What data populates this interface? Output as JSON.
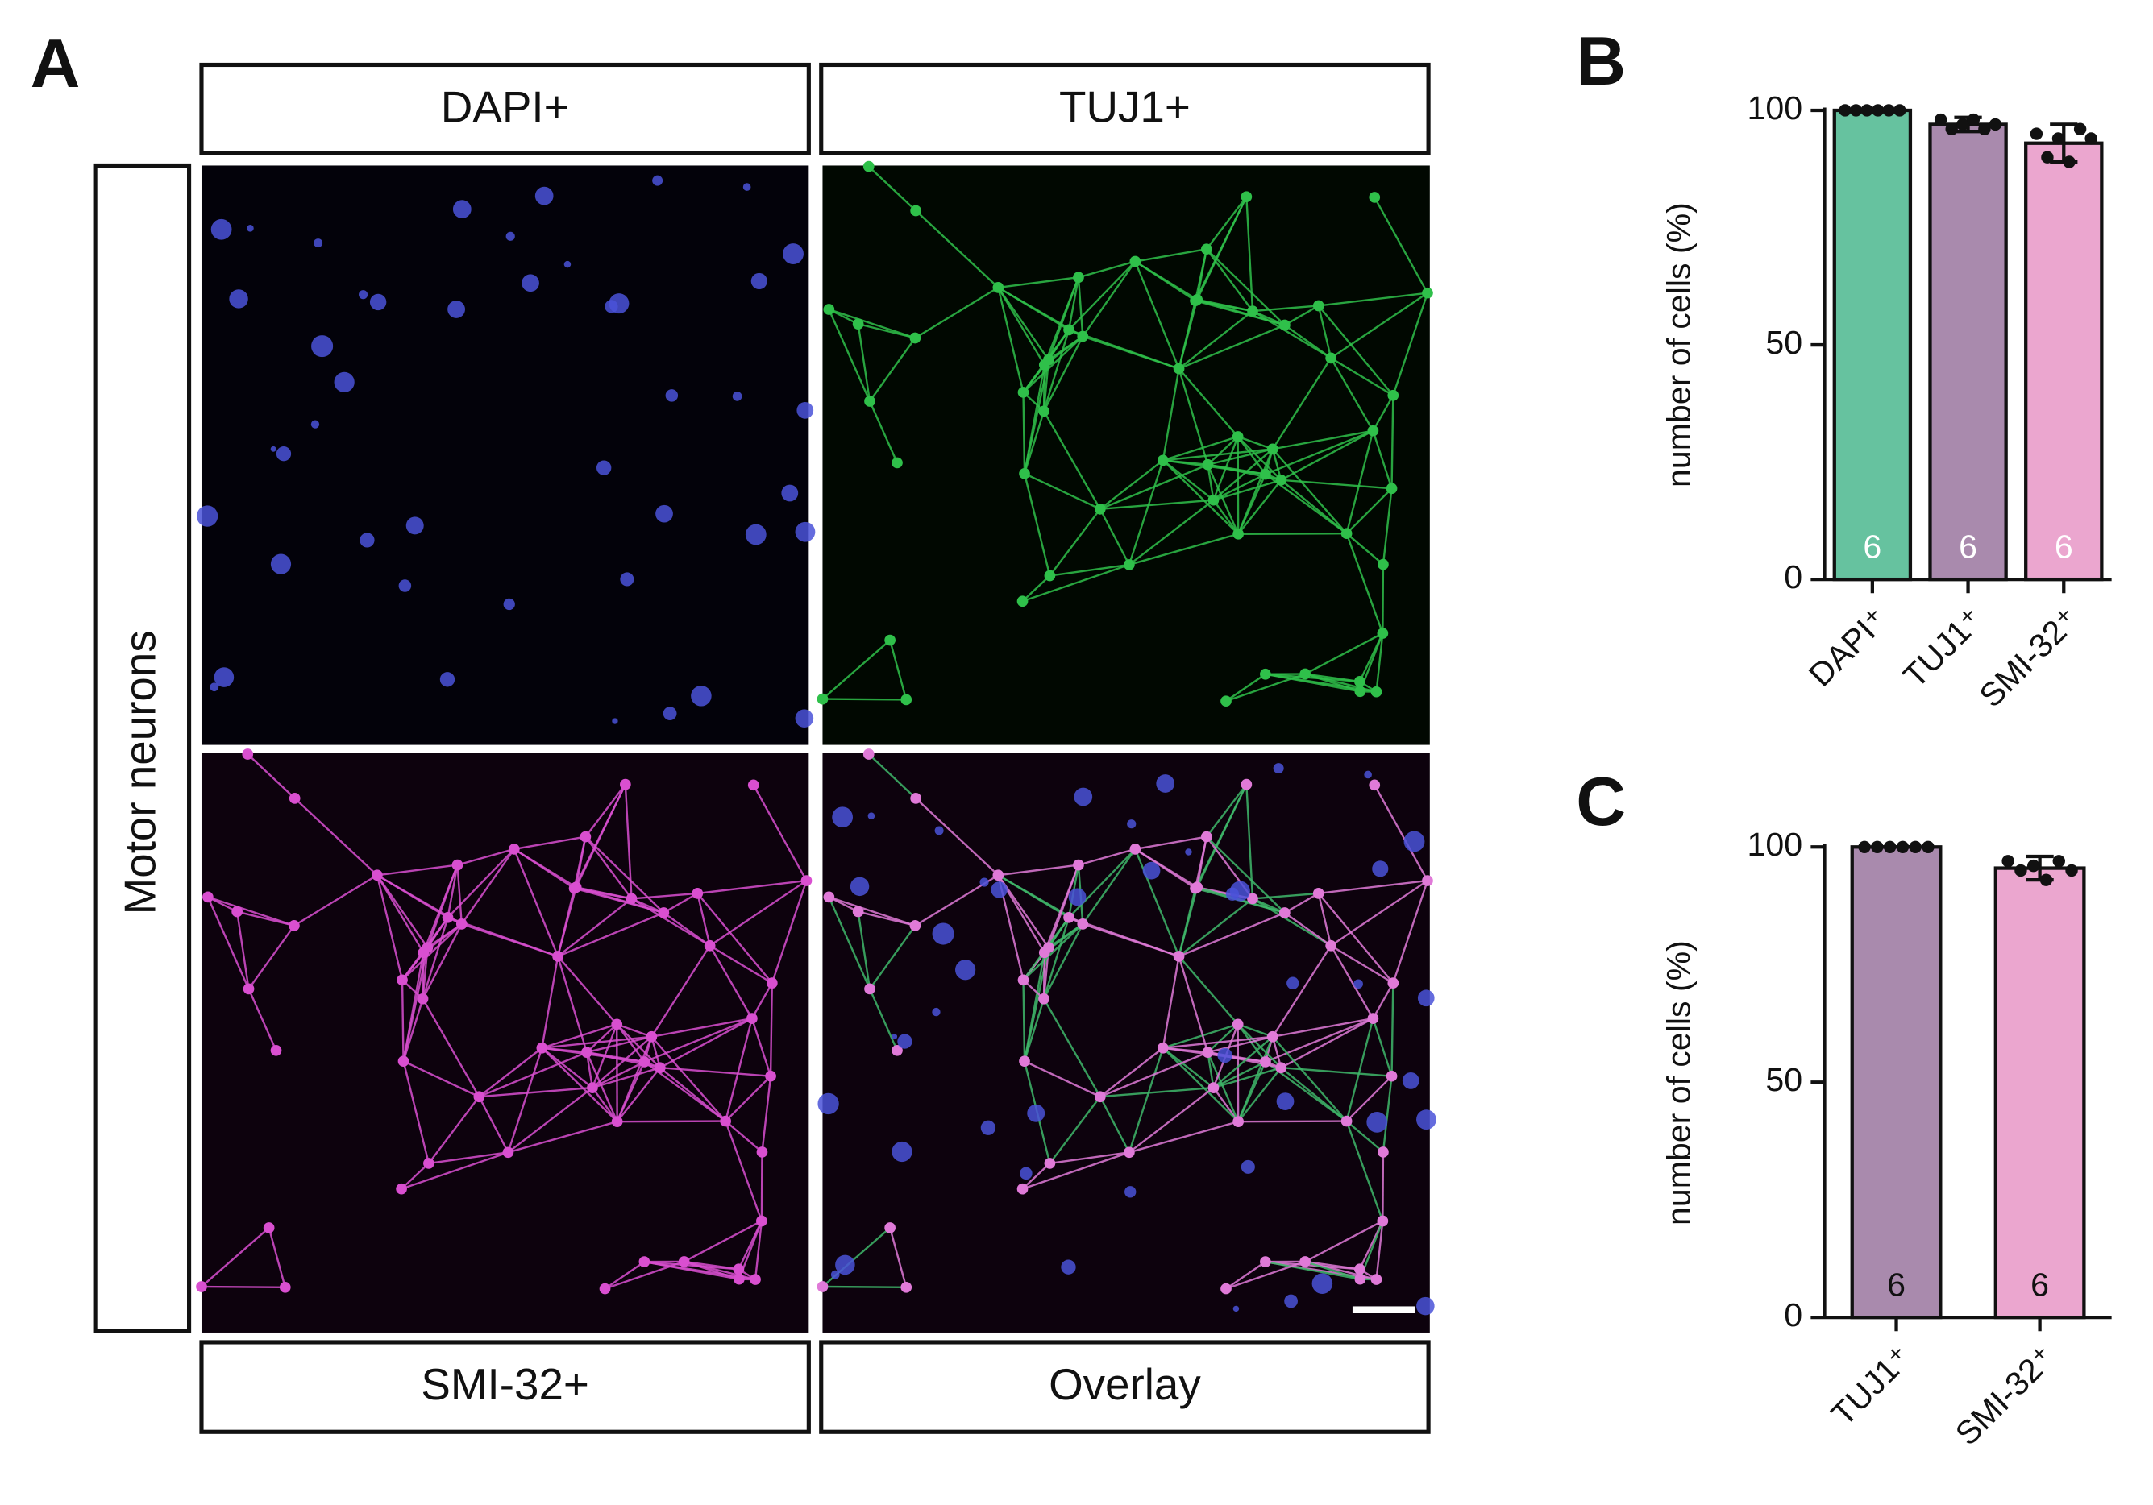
{
  "panel_a": {
    "panel_label": "A",
    "top_labels": [
      "DAPI+",
      "TUJ1+"
    ],
    "bottom_labels": [
      "SMI-32+",
      "Overlay"
    ],
    "side_label": "Motor neurons"
  },
  "chart_data": [
    {
      "type": "bar",
      "panel_label": "B",
      "ylabel": "number of cells (%)",
      "categories": [
        "DAPI⁺",
        "TUJ1⁺",
        "SMI-32⁺"
      ],
      "values": [
        100,
        97,
        93
      ],
      "errors": [
        0,
        1.5,
        4
      ],
      "colors": [
        "#66c29f",
        "#a98aad",
        "#eba6cf"
      ],
      "points": [
        [
          100,
          100,
          100,
          100,
          100,
          100
        ],
        [
          98,
          96,
          97,
          98,
          96,
          97
        ],
        [
          95,
          90,
          94,
          89,
          96,
          94
        ]
      ],
      "n": [
        6,
        6,
        6
      ],
      "n_color": "#ffffff",
      "ylim": [
        0,
        100
      ],
      "yticks": [
        0,
        50,
        100
      ]
    },
    {
      "type": "bar",
      "panel_label": "C",
      "ylabel": "number of cells (%)",
      "categories": [
        "TUJ1⁺",
        "SMI-32⁺"
      ],
      "values": [
        100,
        95.5
      ],
      "errors": [
        0,
        2.5
      ],
      "colors": [
        "#a98aad",
        "#eba6cf"
      ],
      "points": [
        [
          100,
          100,
          100,
          100,
          100,
          100
        ],
        [
          97,
          95,
          96,
          93,
          97,
          95
        ]
      ],
      "n": [
        6,
        6
      ],
      "n_color": "#111111",
      "ylim": [
        0,
        100
      ],
      "yticks": [
        0,
        50,
        100
      ]
    }
  ]
}
